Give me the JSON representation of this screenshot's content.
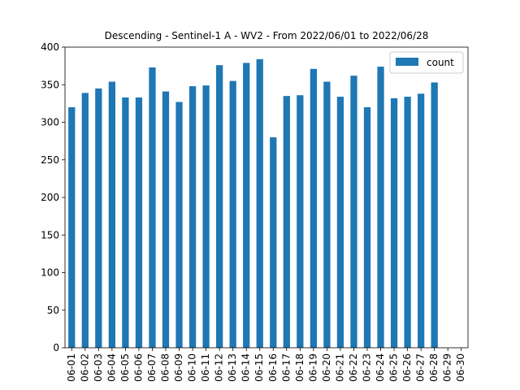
{
  "chart_data": {
    "type": "bar",
    "title": "Descending - Sentinel-1 A - WV2 - From 2022/06/01 to 2022/06/28",
    "xlabel": "",
    "ylabel": "",
    "categories": [
      "06-01",
      "06-02",
      "06-03",
      "06-04",
      "06-05",
      "06-06",
      "06-07",
      "06-08",
      "06-09",
      "06-10",
      "06-11",
      "06-12",
      "06-13",
      "06-14",
      "06-15",
      "06-16",
      "06-17",
      "06-18",
      "06-19",
      "06-20",
      "06-21",
      "06-22",
      "06-23",
      "06-24",
      "06-25",
      "06-26",
      "06-27",
      "06-28",
      "06-29",
      "06-30"
    ],
    "series": [
      {
        "name": "count",
        "color": "#1f77b4",
        "values": [
          320,
          339,
          345,
          354,
          333,
          333,
          373,
          341,
          327,
          348,
          349,
          376,
          355,
          379,
          384,
          280,
          335,
          336,
          371,
          354,
          334,
          362,
          320,
          374,
          332,
          334,
          338,
          353,
          null,
          null
        ]
      }
    ],
    "ylim": [
      0,
      400
    ],
    "yticks": [
      0,
      50,
      100,
      150,
      200,
      250,
      300,
      350,
      400
    ],
    "legend_position": "top-right",
    "grid": false
  }
}
